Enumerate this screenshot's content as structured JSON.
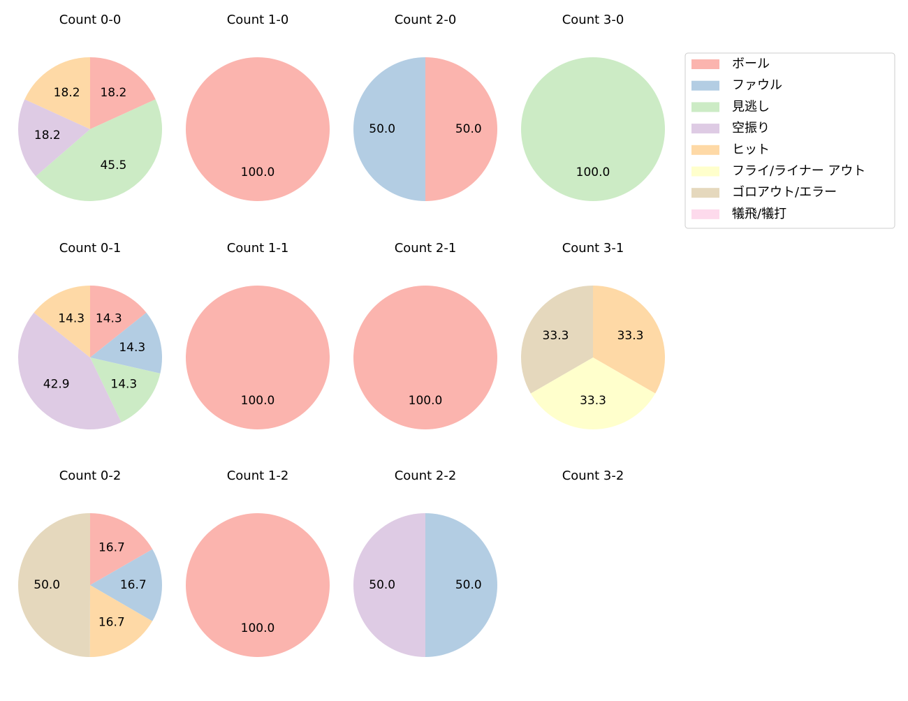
{
  "legend": {
    "entries": [
      "ボール",
      "ファウル",
      "見逃し",
      "空振り",
      "ヒット",
      "フライ/ライナー アウト",
      "ゴロアウト/エラー",
      "犠飛/犠打"
    ],
    "colors": [
      "#fbb4ae",
      "#b3cde3",
      "#ccebc5",
      "#decbe4",
      "#fed9a6",
      "#ffffcc",
      "#e5d8bd",
      "#fddaec"
    ],
    "position": "upper right"
  },
  "chart_data": [
    {
      "type": "pie",
      "title": "Count 0-0",
      "categories": [
        "ボール",
        "見逃し",
        "空振り",
        "ヒット"
      ],
      "values": [
        18.2,
        45.5,
        18.2,
        18.2
      ],
      "value_labels": [
        "18.2",
        "45.5",
        "18.2",
        "18.2"
      ],
      "colors": [
        "#fbb4ae",
        "#ccebc5",
        "#decbe4",
        "#fed9a6"
      ]
    },
    {
      "type": "pie",
      "title": "Count 1-0",
      "categories": [
        "ボール"
      ],
      "values": [
        100
      ],
      "value_labels": [
        "100.0"
      ],
      "colors": [
        "#fbb4ae"
      ]
    },
    {
      "type": "pie",
      "title": "Count 2-0",
      "categories": [
        "ボール",
        "ファウル"
      ],
      "values": [
        50,
        50
      ],
      "value_labels": [
        "50.0",
        "50.0"
      ],
      "colors": [
        "#fbb4ae",
        "#b3cde3"
      ]
    },
    {
      "type": "pie",
      "title": "Count 3-0",
      "categories": [
        "見逃し"
      ],
      "values": [
        100
      ],
      "value_labels": [
        "100.0"
      ],
      "colors": [
        "#ccebc5"
      ]
    },
    {
      "type": "pie",
      "title": "Count 0-1",
      "categories": [
        "ボール",
        "ファウル",
        "見逃し",
        "空振り",
        "ヒット"
      ],
      "values": [
        14.3,
        14.3,
        14.3,
        42.9,
        14.3
      ],
      "value_labels": [
        "14.3",
        "14.3",
        "14.3",
        "42.9",
        "14.3"
      ],
      "colors": [
        "#fbb4ae",
        "#b3cde3",
        "#ccebc5",
        "#decbe4",
        "#fed9a6"
      ]
    },
    {
      "type": "pie",
      "title": "Count 1-1",
      "categories": [
        "ボール"
      ],
      "values": [
        100
      ],
      "value_labels": [
        "100.0"
      ],
      "colors": [
        "#fbb4ae"
      ]
    },
    {
      "type": "pie",
      "title": "Count 2-1",
      "categories": [
        "ボール"
      ],
      "values": [
        100
      ],
      "value_labels": [
        "100.0"
      ],
      "colors": [
        "#fbb4ae"
      ]
    },
    {
      "type": "pie",
      "title": "Count 3-1",
      "categories": [
        "ヒット",
        "フライ/ライナー アウト",
        "ゴロアウト/エラー"
      ],
      "values": [
        33.3,
        33.3,
        33.3
      ],
      "value_labels": [
        "33.3",
        "33.3",
        "33.3"
      ],
      "colors": [
        "#fed9a6",
        "#ffffcc",
        "#e5d8bd"
      ]
    },
    {
      "type": "pie",
      "title": "Count 0-2",
      "categories": [
        "ボール",
        "ファウル",
        "ヒット",
        "ゴロアウト/エラー"
      ],
      "values": [
        16.7,
        16.7,
        16.7,
        50
      ],
      "value_labels": [
        "16.7",
        "16.7",
        "16.7",
        "50.0"
      ],
      "colors": [
        "#fbb4ae",
        "#b3cde3",
        "#fed9a6",
        "#e5d8bd"
      ]
    },
    {
      "type": "pie",
      "title": "Count 1-2",
      "categories": [
        "ボール"
      ],
      "values": [
        100
      ],
      "value_labels": [
        "100.0"
      ],
      "colors": [
        "#fbb4ae"
      ]
    },
    {
      "type": "pie",
      "title": "Count 2-2",
      "categories": [
        "ファウル",
        "空振り"
      ],
      "values": [
        50,
        50
      ],
      "value_labels": [
        "50.0",
        "50.0"
      ],
      "colors": [
        "#b3cde3",
        "#decbe4"
      ]
    },
    {
      "type": "pie",
      "title": "Count 3-2",
      "categories": [],
      "values": [],
      "value_labels": [],
      "colors": []
    }
  ]
}
